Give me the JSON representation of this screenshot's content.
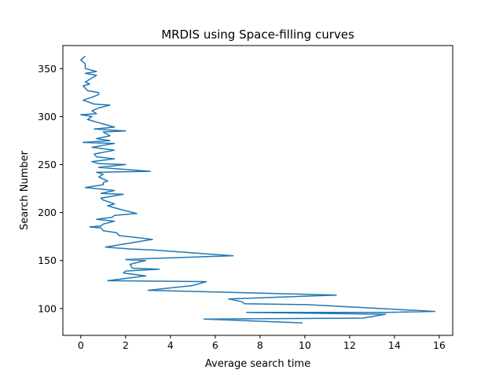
{
  "chart_data": {
    "type": "line",
    "title": "MRDIS using Space-filling curves",
    "xlabel": "Average search time",
    "ylabel": "Search Number",
    "xlim": [
      -0.8,
      16.6
    ],
    "ylim": [
      72,
      374
    ],
    "xticks": [
      0,
      2,
      4,
      6,
      8,
      10,
      12,
      14,
      16
    ],
    "yticks": [
      100,
      150,
      200,
      250,
      300,
      350
    ],
    "grid": false,
    "series": [
      {
        "color": "#1f77b4",
        "points": [
          [
            9.9,
            85
          ],
          [
            5.5,
            89
          ],
          [
            12.6,
            90
          ],
          [
            13.6,
            94
          ],
          [
            7.4,
            96
          ],
          [
            13.6,
            96
          ],
          [
            15.8,
            97
          ],
          [
            10.1,
            104
          ],
          [
            7.3,
            105
          ],
          [
            7.2,
            107
          ],
          [
            6.6,
            110
          ],
          [
            11.4,
            114
          ],
          [
            3.0,
            119
          ],
          [
            5.0,
            124
          ],
          [
            5.6,
            128
          ],
          [
            1.2,
            129
          ],
          [
            2.9,
            134
          ],
          [
            1.9,
            137
          ],
          [
            2.0,
            139
          ],
          [
            3.5,
            141
          ],
          [
            2.3,
            142
          ],
          [
            2.2,
            146
          ],
          [
            2.7,
            149
          ],
          [
            2.9,
            150
          ],
          [
            2.0,
            151
          ],
          [
            3.0,
            152
          ],
          [
            6.8,
            155
          ],
          [
            3.2,
            161
          ],
          [
            2.2,
            162
          ],
          [
            1.1,
            164
          ],
          [
            3.2,
            172
          ],
          [
            1.7,
            176
          ],
          [
            1.6,
            179
          ],
          [
            1.0,
            181
          ],
          [
            0.9,
            184
          ],
          [
            0.4,
            185
          ],
          [
            0.9,
            186
          ],
          [
            1.0,
            188
          ],
          [
            1.5,
            191
          ],
          [
            0.7,
            193
          ],
          [
            1.4,
            195
          ],
          [
            1.5,
            197
          ],
          [
            2.5,
            199
          ],
          [
            1.8,
            203
          ],
          [
            1.2,
            207
          ],
          [
            1.5,
            209
          ],
          [
            1.0,
            213
          ],
          [
            0.9,
            215
          ],
          [
            1.9,
            219
          ],
          [
            0.9,
            220
          ],
          [
            1.5,
            223
          ],
          [
            0.2,
            226
          ],
          [
            1.0,
            229
          ],
          [
            1.0,
            231
          ],
          [
            1.2,
            233
          ],
          [
            0.8,
            237
          ],
          [
            1.0,
            240
          ],
          [
            0.7,
            242
          ],
          [
            3.1,
            243
          ],
          [
            0.8,
            247
          ],
          [
            2.0,
            250
          ],
          [
            0.8,
            251
          ],
          [
            0.5,
            253
          ],
          [
            1.5,
            256
          ],
          [
            0.7,
            258
          ],
          [
            0.6,
            261
          ],
          [
            1.5,
            265
          ],
          [
            0.5,
            268
          ],
          [
            1.5,
            272
          ],
          [
            0.1,
            273
          ],
          [
            1.3,
            275
          ],
          [
            0.7,
            277
          ],
          [
            1.3,
            280
          ],
          [
            1.0,
            284
          ],
          [
            2.0,
            285
          ],
          [
            0.6,
            287
          ],
          [
            1.5,
            289
          ],
          [
            0.9,
            293
          ],
          [
            0.3,
            297
          ],
          [
            0.5,
            300
          ],
          [
            0.0,
            302
          ],
          [
            0.7,
            303
          ],
          [
            0.5,
            306
          ],
          [
            0.8,
            309
          ],
          [
            1.3,
            312
          ],
          [
            0.6,
            313
          ],
          [
            0.1,
            317
          ],
          [
            0.6,
            321
          ],
          [
            0.8,
            323
          ],
          [
            0.8,
            325
          ],
          [
            0.3,
            327
          ],
          [
            0.1,
            332
          ],
          [
            0.4,
            334
          ],
          [
            0.2,
            336
          ],
          [
            0.7,
            343
          ],
          [
            0.2,
            345
          ],
          [
            0.7,
            347
          ],
          [
            0.2,
            350
          ],
          [
            0.2,
            355
          ],
          [
            0.0,
            359
          ],
          [
            0.1,
            361
          ],
          [
            0.2,
            363
          ]
        ]
      }
    ]
  }
}
